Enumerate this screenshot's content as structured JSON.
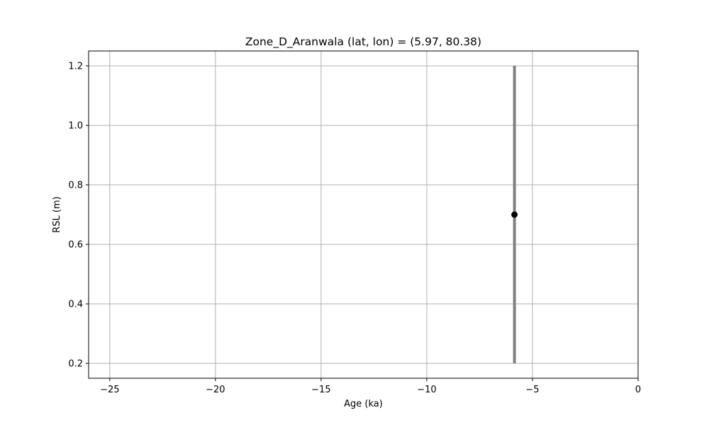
{
  "chart_data": {
    "type": "scatter",
    "title": "Zone_D_Aranwala (lat, lon) = (5.97, 80.38)",
    "xlabel": "Age (ka)",
    "ylabel": "RSL (m)",
    "xlim": [
      -26,
      0
    ],
    "ylim": [
      0.15,
      1.25
    ],
    "xticks": [
      -25,
      -20,
      -15,
      -10,
      -5,
      0
    ],
    "xtick_labels": [
      "−25",
      "−20",
      "−15",
      "−10",
      "−5",
      "0"
    ],
    "yticks": [
      0.2,
      0.4,
      0.6,
      0.8,
      1.0,
      1.2
    ],
    "ytick_labels": [
      "0.2",
      "0.4",
      "0.6",
      "0.8",
      "1.0",
      "1.2"
    ],
    "grid": true,
    "points": [
      {
        "x": -5.85,
        "y": 0.7,
        "y_err_low": 0.2,
        "y_err_high": 1.2
      }
    ],
    "colors": {
      "marker": "#000000",
      "errorbar": "#808080",
      "grid": "#b0b0b0"
    }
  }
}
